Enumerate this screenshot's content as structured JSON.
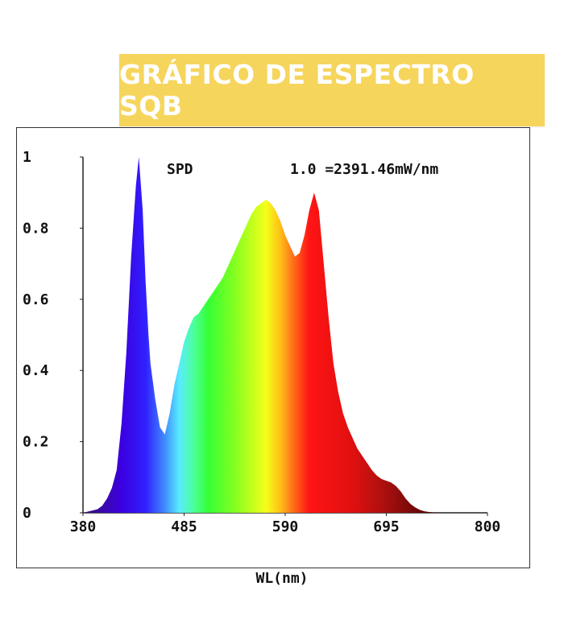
{
  "banner": {
    "title": "GRÁFICO DE ESPECTRO SQB",
    "background": "#f6d55c",
    "text_color": "#ffffff"
  },
  "chart_data": {
    "type": "area",
    "title": "",
    "xlabel": "WL(nm)",
    "ylabel": "",
    "series_label": "SPD",
    "annotation": "1.0 =2391.46mW/nm",
    "xlim": [
      380,
      800
    ],
    "ylim": [
      0,
      1
    ],
    "x_ticks": [
      "380",
      "485",
      "590",
      "695",
      "800"
    ],
    "y_ticks": [
      "0",
      "0.2",
      "0.4",
      "0.6",
      "0.8",
      "1"
    ],
    "x": [
      380,
      395,
      400,
      405,
      410,
      415,
      420,
      425,
      430,
      435,
      438,
      442,
      445,
      448,
      450,
      455,
      460,
      465,
      470,
      475,
      480,
      485,
      490,
      495,
      500,
      505,
      510,
      515,
      520,
      525,
      530,
      535,
      540,
      545,
      550,
      555,
      560,
      565,
      570,
      575,
      580,
      585,
      590,
      595,
      600,
      605,
      610,
      615,
      620,
      625,
      630,
      635,
      640,
      645,
      650,
      655,
      660,
      665,
      670,
      675,
      680,
      685,
      690,
      695,
      700,
      705,
      710,
      715,
      720,
      725,
      730,
      735,
      740,
      745,
      750,
      755,
      760,
      770,
      780,
      790,
      800
    ],
    "values": [
      0.0,
      0.01,
      0.02,
      0.04,
      0.07,
      0.12,
      0.25,
      0.45,
      0.72,
      0.92,
      1.0,
      0.85,
      0.65,
      0.5,
      0.42,
      0.32,
      0.24,
      0.22,
      0.28,
      0.36,
      0.42,
      0.48,
      0.52,
      0.55,
      0.56,
      0.58,
      0.6,
      0.62,
      0.64,
      0.66,
      0.69,
      0.72,
      0.75,
      0.78,
      0.81,
      0.84,
      0.86,
      0.87,
      0.88,
      0.87,
      0.85,
      0.82,
      0.78,
      0.75,
      0.72,
      0.73,
      0.78,
      0.85,
      0.9,
      0.85,
      0.7,
      0.55,
      0.42,
      0.34,
      0.28,
      0.24,
      0.21,
      0.18,
      0.16,
      0.14,
      0.12,
      0.105,
      0.095,
      0.09,
      0.085,
      0.075,
      0.06,
      0.04,
      0.025,
      0.015,
      0.008,
      0.004,
      0.002,
      0.001,
      0.0,
      0.0,
      0.0,
      0.0,
      0.0,
      0.0,
      0.0
    ],
    "grid": false,
    "legend": "none"
  }
}
